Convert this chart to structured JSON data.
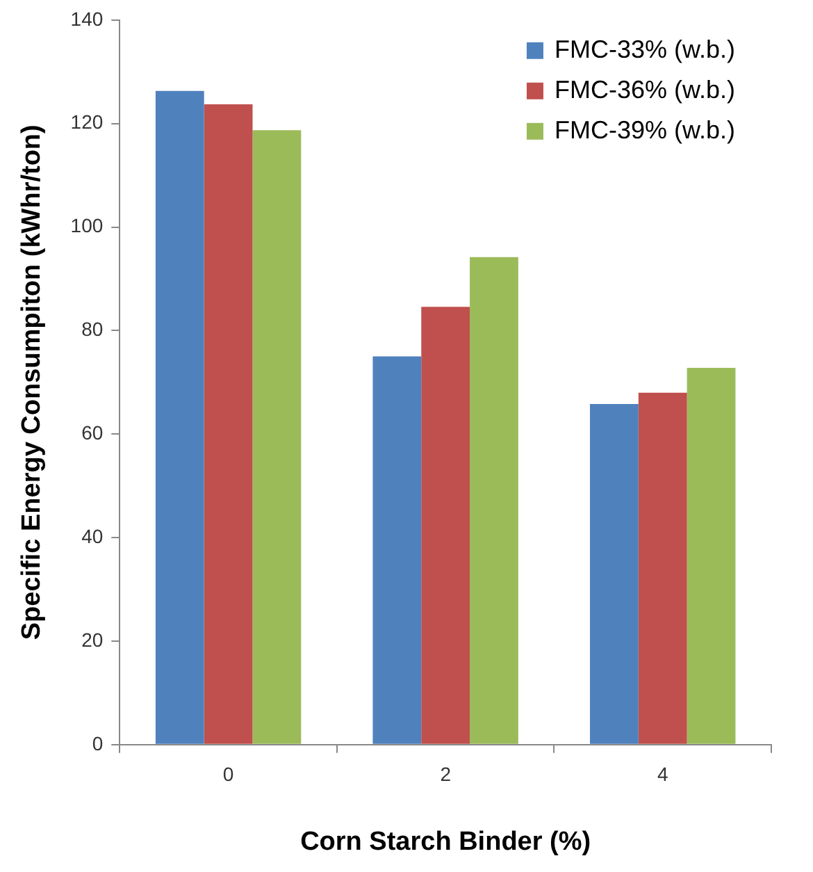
{
  "chart_data": {
    "type": "bar",
    "xlabel": "Corn Starch Binder (%)",
    "ylabel": "Specific Energy Consumpiton (kWhr/ton)",
    "categories": [
      "0",
      "2",
      "4"
    ],
    "series": [
      {
        "name": "FMC-33% (w.b.)",
        "color": "#4f81bd",
        "values": [
          126.3,
          75.0,
          65.8
        ]
      },
      {
        "name": "FMC-36% (w.b.)",
        "color": "#c0504d",
        "values": [
          123.7,
          84.6,
          68.0
        ]
      },
      {
        "name": "FMC-39% (w.b.)",
        "color": "#9bbb59",
        "values": [
          118.7,
          94.2,
          72.8
        ]
      }
    ],
    "ylim": [
      0,
      140
    ],
    "yticks": [
      0,
      20,
      40,
      60,
      80,
      100,
      120,
      140
    ],
    "grid": false,
    "legend": "top right"
  }
}
